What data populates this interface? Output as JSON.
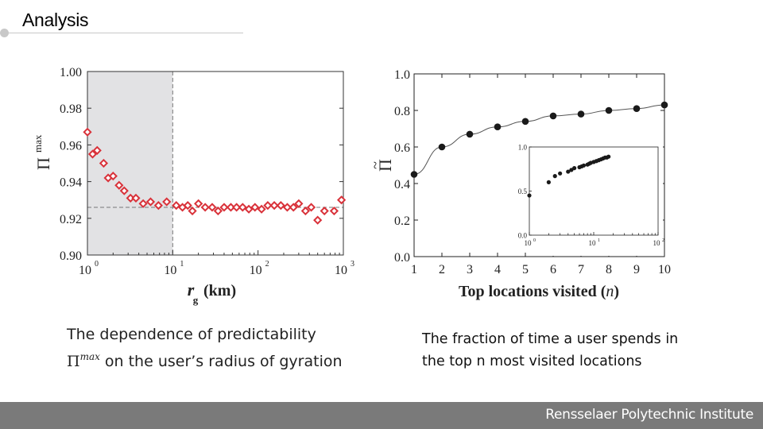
{
  "slide": {
    "title": "Analysis",
    "caption_left_line1": "The dependence of predictability",
    "caption_left_symbol": "Π",
    "caption_left_sup": "max",
    "caption_left_rest": "on the user’s radius of gyration",
    "caption_right": "The fraction of time a user spends in the top n most visited locations",
    "footer": "Rensselaer Polytechnic Institute"
  },
  "colors": {
    "series_red": "#d9323a",
    "series_black": "#1a1a1a",
    "shade": "#e2e2e4",
    "footer_bg": "#7a7a7a"
  },
  "chart_data": [
    {
      "type": "scatter",
      "xscale": "log",
      "xlim": [
        1,
        1000
      ],
      "ylim": [
        0.9,
        1.0
      ],
      "ylabel_symbol": "Π",
      "ylabel_sup": "max",
      "xlabel_var": "r",
      "xlabel_sub": "g",
      "xlabel_unit": "(km)",
      "ytick_labels": [
        "0.90",
        "0.92",
        "0.94",
        "0.96",
        "0.98",
        "1.00"
      ],
      "xtick_bases": [
        "10",
        "10",
        "10",
        "10"
      ],
      "xtick_exps": [
        "0",
        "1",
        "2",
        "3"
      ],
      "shaded_range_x": [
        1,
        10
      ],
      "reference_y": 0.926,
      "grid": false,
      "points": [
        {
          "x": 1.0,
          "y": 0.967
        },
        {
          "x": 1.15,
          "y": 0.955
        },
        {
          "x": 1.3,
          "y": 0.957
        },
        {
          "x": 1.55,
          "y": 0.95
        },
        {
          "x": 1.75,
          "y": 0.942
        },
        {
          "x": 2.0,
          "y": 0.943
        },
        {
          "x": 2.35,
          "y": 0.938
        },
        {
          "x": 2.7,
          "y": 0.935
        },
        {
          "x": 3.2,
          "y": 0.931
        },
        {
          "x": 3.7,
          "y": 0.931
        },
        {
          "x": 4.5,
          "y": 0.928
        },
        {
          "x": 5.5,
          "y": 0.929
        },
        {
          "x": 6.8,
          "y": 0.927
        },
        {
          "x": 8.5,
          "y": 0.929
        },
        {
          "x": 11,
          "y": 0.927
        },
        {
          "x": 13,
          "y": 0.926
        },
        {
          "x": 15,
          "y": 0.927
        },
        {
          "x": 17,
          "y": 0.924
        },
        {
          "x": 20,
          "y": 0.928
        },
        {
          "x": 24,
          "y": 0.926
        },
        {
          "x": 29,
          "y": 0.926
        },
        {
          "x": 34,
          "y": 0.924
        },
        {
          "x": 40,
          "y": 0.926
        },
        {
          "x": 48,
          "y": 0.926
        },
        {
          "x": 56,
          "y": 0.926
        },
        {
          "x": 66,
          "y": 0.926
        },
        {
          "x": 78,
          "y": 0.925
        },
        {
          "x": 92,
          "y": 0.926
        },
        {
          "x": 110,
          "y": 0.925
        },
        {
          "x": 130,
          "y": 0.927
        },
        {
          "x": 155,
          "y": 0.927
        },
        {
          "x": 185,
          "y": 0.927
        },
        {
          "x": 220,
          "y": 0.926
        },
        {
          "x": 260,
          "y": 0.926
        },
        {
          "x": 300,
          "y": 0.928
        },
        {
          "x": 360,
          "y": 0.924
        },
        {
          "x": 420,
          "y": 0.926
        },
        {
          "x": 500,
          "y": 0.919
        },
        {
          "x": 600,
          "y": 0.924
        },
        {
          "x": 780,
          "y": 0.924
        },
        {
          "x": 950,
          "y": 0.93
        }
      ]
    },
    {
      "type": "line",
      "xlim": [
        1,
        10
      ],
      "ylim": [
        0.0,
        1.0
      ],
      "xtick_labels": [
        "1",
        "2",
        "3",
        "4",
        "5",
        "6",
        "7",
        "8",
        "9",
        "10"
      ],
      "ytick_labels": [
        "0.0",
        "0.2",
        "0.4",
        "0.6",
        "0.8",
        "1.0"
      ],
      "ylabel_symbol": "Π",
      "ylabel_accent": "~",
      "xlabel_text": "Top locations visited (",
      "xlabel_var": "n",
      "xlabel_close": ")",
      "x": [
        1,
        2,
        3,
        4,
        5,
        6,
        7,
        8,
        9,
        10
      ],
      "y": [
        0.45,
        0.6,
        0.67,
        0.71,
        0.74,
        0.77,
        0.78,
        0.8,
        0.81,
        0.83
      ],
      "inset": {
        "type": "scatter",
        "xscale": "log",
        "xlim": [
          1,
          100
        ],
        "ylim": [
          0.0,
          1.0
        ],
        "ytick_labels": [
          "0.0",
          "0.5",
          "1.0"
        ],
        "xtick_bases": [
          "10",
          "10",
          "10"
        ],
        "xtick_exps": [
          "0",
          "1",
          "2"
        ],
        "points": [
          {
            "x": 1,
            "y": 0.45
          },
          {
            "x": 2,
            "y": 0.6
          },
          {
            "x": 2.5,
            "y": 0.67
          },
          {
            "x": 3,
            "y": 0.7
          },
          {
            "x": 4,
            "y": 0.72
          },
          {
            "x": 4.5,
            "y": 0.74
          },
          {
            "x": 5,
            "y": 0.76
          },
          {
            "x": 6,
            "y": 0.77
          },
          {
            "x": 6.5,
            "y": 0.78
          },
          {
            "x": 7,
            "y": 0.79
          },
          {
            "x": 8,
            "y": 0.8
          },
          {
            "x": 8.5,
            "y": 0.81
          },
          {
            "x": 9,
            "y": 0.82
          },
          {
            "x": 10,
            "y": 0.83
          },
          {
            "x": 11,
            "y": 0.84
          },
          {
            "x": 12,
            "y": 0.85
          },
          {
            "x": 13,
            "y": 0.86
          },
          {
            "x": 14,
            "y": 0.87
          },
          {
            "x": 15,
            "y": 0.88
          },
          {
            "x": 16,
            "y": 0.88
          },
          {
            "x": 17,
            "y": 0.89
          }
        ]
      }
    }
  ]
}
